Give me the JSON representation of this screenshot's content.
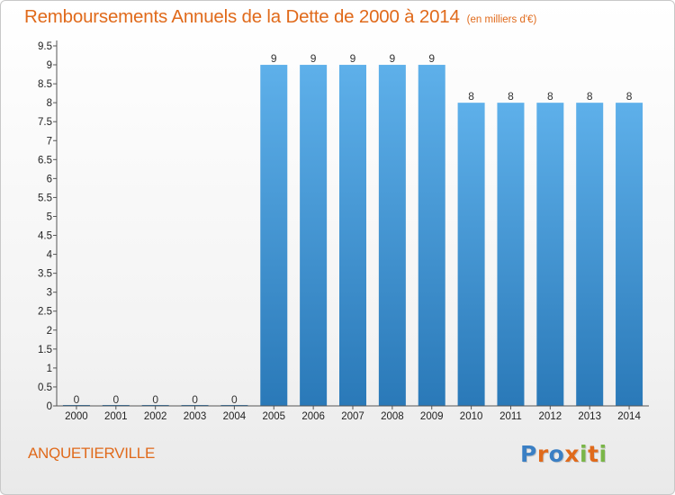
{
  "header": {
    "title": "Remboursements Annuels de la Dette de 2000 à 2014",
    "subtitle": "(en milliers d'€)"
  },
  "footer": {
    "commune": "ANQUETIERVILLE"
  },
  "logo": {
    "text": "Proxiti",
    "letter_colors": [
      "#3a7fc4",
      "#e06a1b",
      "#3a7fc4",
      "#e06a1b",
      "#7ab648",
      "#e06a1b",
      "#7ab648"
    ]
  },
  "colors": {
    "title": "#e06a1b",
    "bar_light": "#5eb0ea",
    "bar_dark": "#2a79b8",
    "axis": "#555555"
  },
  "chart_data": {
    "type": "bar",
    "title": "Remboursements Annuels de la Dette de 2000 à 2014",
    "subtitle": "(en milliers d'€)",
    "xlabel": "",
    "ylabel": "",
    "categories": [
      "2000",
      "2001",
      "2002",
      "2003",
      "2004",
      "2005",
      "2006",
      "2007",
      "2008",
      "2009",
      "2010",
      "2011",
      "2012",
      "2013",
      "2014"
    ],
    "values": [
      0,
      0,
      0,
      0,
      0,
      9,
      9,
      9,
      9,
      9,
      8,
      8,
      8,
      8,
      8
    ],
    "labels": [
      "0",
      "0",
      "0",
      "0",
      "0",
      "9",
      "9",
      "9",
      "9",
      "9",
      "8",
      "8",
      "8",
      "8",
      "8"
    ],
    "ylim": [
      0,
      9.5
    ],
    "yticks": [
      0,
      0.5,
      1,
      1.5,
      2,
      2.5,
      3,
      3.5,
      4,
      4.5,
      5,
      5.5,
      6,
      6.5,
      7,
      7.5,
      8,
      8.5,
      9,
      9.5
    ],
    "ytick_labels": [
      "0",
      "0.5",
      "1",
      "1.5",
      "2",
      "2.5",
      "3",
      "3.5",
      "4",
      "4.5",
      "5",
      "5.5",
      "6",
      "6.5",
      "7",
      "7.5",
      "8",
      "8.5",
      "9",
      "9.5"
    ],
    "grid": false,
    "legend": "none"
  }
}
